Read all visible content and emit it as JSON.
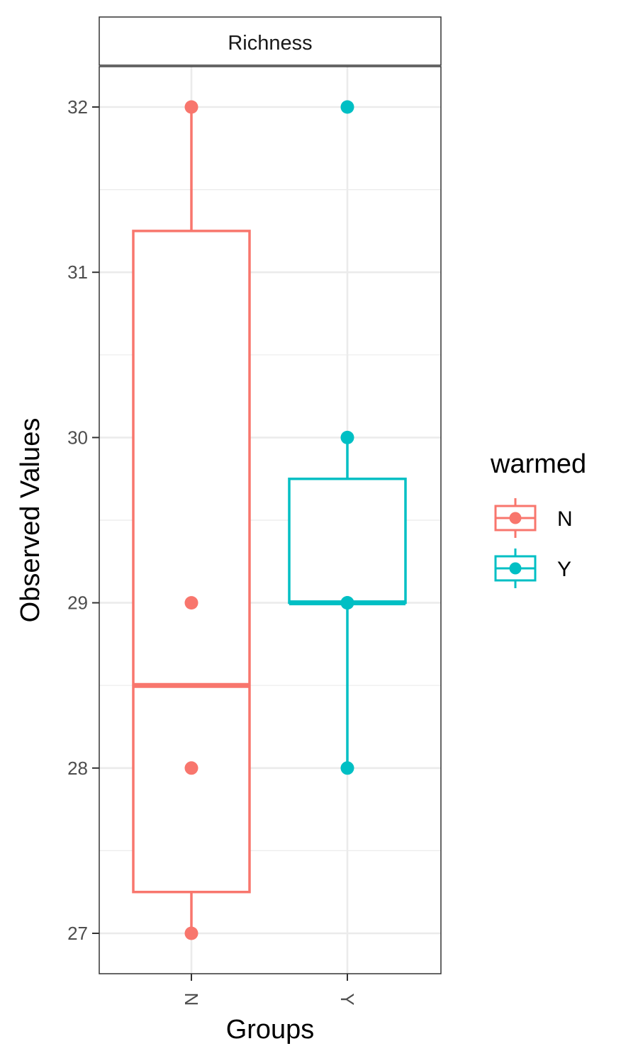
{
  "chart_data": {
    "type": "box",
    "facet": "Richness",
    "xlabel": "Groups",
    "ylabel": "Observed Values",
    "categories": [
      "N",
      "Y"
    ],
    "ylim": [
      26.7,
      32.25
    ],
    "yticks": [
      27,
      28,
      29,
      30,
      31,
      32
    ],
    "grid": true,
    "legend": {
      "title": "warmed",
      "position": "right",
      "entries": [
        "N",
        "Y"
      ]
    },
    "series": [
      {
        "name": "N",
        "color": "#F8766D",
        "box": {
          "min": 27,
          "q1": 27.25,
          "median": 28.5,
          "q3": 31.25,
          "max": 32
        },
        "points": [
          27,
          28,
          29,
          32
        ]
      },
      {
        "name": "Y",
        "color": "#00BFC4",
        "box": {
          "min": 28,
          "q1": 29,
          "median": 29,
          "q3": 29.75,
          "max": 30
        },
        "points": [
          28,
          29,
          29,
          30,
          32
        ]
      }
    ]
  }
}
